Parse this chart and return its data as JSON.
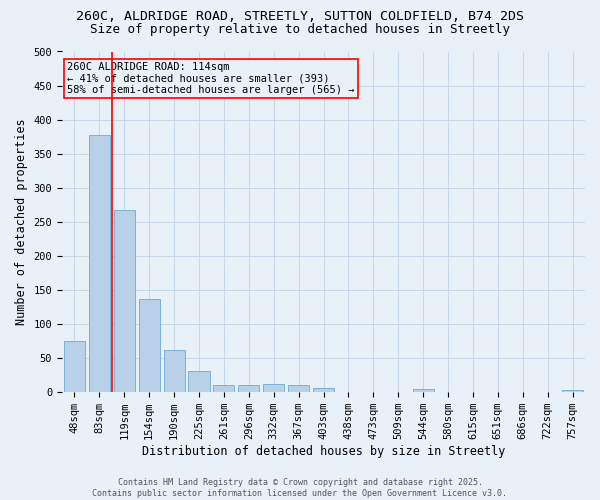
{
  "title_line1": "260C, ALDRIDGE ROAD, STREETLY, SUTTON COLDFIELD, B74 2DS",
  "title_line2": "Size of property relative to detached houses in Streetly",
  "xlabel": "Distribution of detached houses by size in Streetly",
  "ylabel": "Number of detached properties",
  "categories": [
    "48sqm",
    "83sqm",
    "119sqm",
    "154sqm",
    "190sqm",
    "225sqm",
    "261sqm",
    "296sqm",
    "332sqm",
    "367sqm",
    "403sqm",
    "438sqm",
    "473sqm",
    "509sqm",
    "544sqm",
    "580sqm",
    "615sqm",
    "651sqm",
    "686sqm",
    "722sqm",
    "757sqm"
  ],
  "values": [
    75,
    378,
    267,
    137,
    62,
    31,
    10,
    10,
    12,
    10,
    5,
    0,
    0,
    0,
    4,
    0,
    0,
    0,
    0,
    0,
    3
  ],
  "bar_color": "#b8d0e8",
  "bar_edge_color": "#6aaad4",
  "grid_color": "#c5d8ea",
  "background_color": "#e8f0f8",
  "vline_color": "red",
  "vline_position": 1.5,
  "annotation_text": "260C ALDRIDGE ROAD: 114sqm\n← 41% of detached houses are smaller (393)\n58% of semi-detached houses are larger (565) →",
  "ylim": [
    0,
    500
  ],
  "yticks": [
    0,
    50,
    100,
    150,
    200,
    250,
    300,
    350,
    400,
    450,
    500
  ],
  "footer_line1": "Contains HM Land Registry data © Crown copyright and database right 2025.",
  "footer_line2": "Contains public sector information licensed under the Open Government Licence v3.0.",
  "title_fontsize": 9.5,
  "subtitle_fontsize": 9,
  "axis_label_fontsize": 8.5,
  "tick_fontsize": 7.5,
  "annotation_fontsize": 7.5,
  "footer_fontsize": 6
}
